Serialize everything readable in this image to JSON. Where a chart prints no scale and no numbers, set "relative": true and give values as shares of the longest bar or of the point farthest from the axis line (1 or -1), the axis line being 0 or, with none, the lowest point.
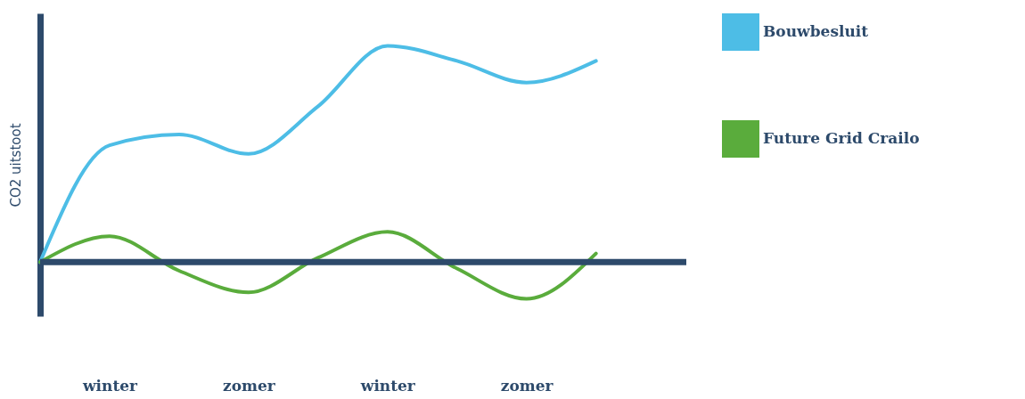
{
  "chart_data": {
    "type": "line",
    "relative": true,
    "ylabel": "CO2 uitstoot",
    "categories": [
      null,
      "winter",
      null,
      "zomer",
      null,
      "winter",
      null,
      "zomer",
      null
    ],
    "series": [
      {
        "name": "Bouwbesluit",
        "color": "#4dbde6",
        "values": [
          0,
          0.54,
          0.59,
          0.5,
          0.72,
          1.0,
          0.93,
          0.83,
          0.93
        ]
      },
      {
        "name": "Future Grid Crailo",
        "color": "#5aac3c",
        "values": [
          0,
          0.12,
          -0.04,
          -0.14,
          0.02,
          0.14,
          -0.03,
          -0.17,
          0.04
        ]
      }
    ],
    "ref_lines": [
      {
        "axis": "y",
        "value": 0,
        "color": "#2d4a6b"
      }
    ],
    "legend": "top right",
    "grid": false,
    "marker": "none",
    "line_style": "solid"
  }
}
